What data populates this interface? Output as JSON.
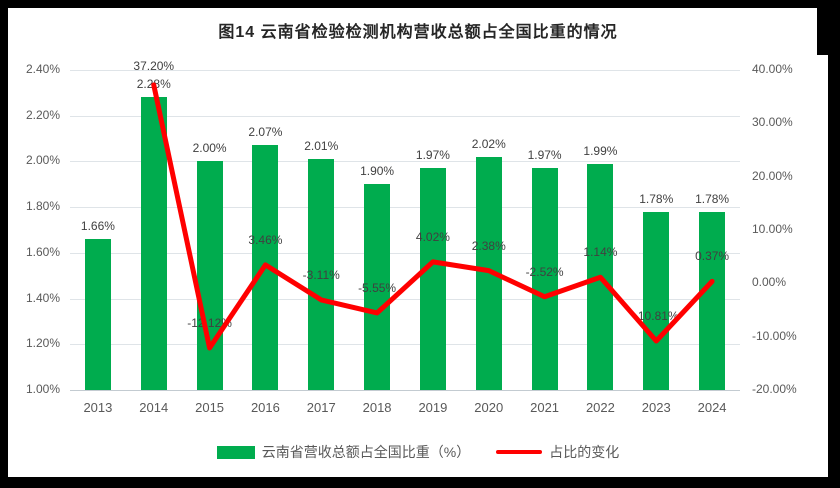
{
  "chart_data": {
    "type": "bar+line combo",
    "title": "图14 云南省检验检测机构营收总额占全国比重的情况",
    "categories": [
      "2013",
      "2014",
      "2015",
      "2016",
      "2017",
      "2018",
      "2019",
      "2020",
      "2021",
      "2022",
      "2023",
      "2024"
    ],
    "series": [
      {
        "name": "云南省营收总额占全国比重（%）",
        "type": "bar",
        "axis": "left",
        "color": "#00AC4E",
        "values": [
          1.66,
          2.28,
          2.0,
          2.07,
          2.01,
          1.9,
          1.97,
          2.02,
          1.97,
          1.99,
          1.78,
          1.78
        ],
        "labels": [
          "1.66%",
          "2.28%",
          "2.00%",
          "2.07%",
          "2.01%",
          "1.90%",
          "1.97%",
          "2.02%",
          "1.97%",
          "1.99%",
          "1.78%",
          "1.78%"
        ]
      },
      {
        "name": "占比的变化",
        "type": "line",
        "axis": "right",
        "color": "#FF0000",
        "values": [
          null,
          37.2,
          -12.12,
          3.46,
          -3.11,
          -5.55,
          4.02,
          2.38,
          -2.52,
          1.14,
          -10.81,
          0.37
        ],
        "labels": [
          null,
          "37.20%",
          "-12.12%",
          "3.46%",
          "-3.11%",
          "-5.55%",
          "4.02%",
          "2.38%",
          "-2.52%",
          "1.14%",
          "-10.81%",
          "0.37%"
        ]
      }
    ],
    "left_axis": {
      "min": 1.0,
      "max": 2.4,
      "step": 0.2,
      "tick_format": "percent_2dp"
    },
    "right_axis": {
      "min": -20,
      "max": 40,
      "step": 10,
      "tick_format": "percent_2dp"
    },
    "grid": "horizontal only",
    "legend_position": "bottom",
    "colors": {
      "bar": "#00AC4E",
      "line": "#FF0000",
      "gridline": "#dfe4e8",
      "axis_text": "#595959",
      "label_text": "#404040",
      "title_text": "#262626",
      "background": "#ffffff",
      "frame": "#000000"
    }
  }
}
